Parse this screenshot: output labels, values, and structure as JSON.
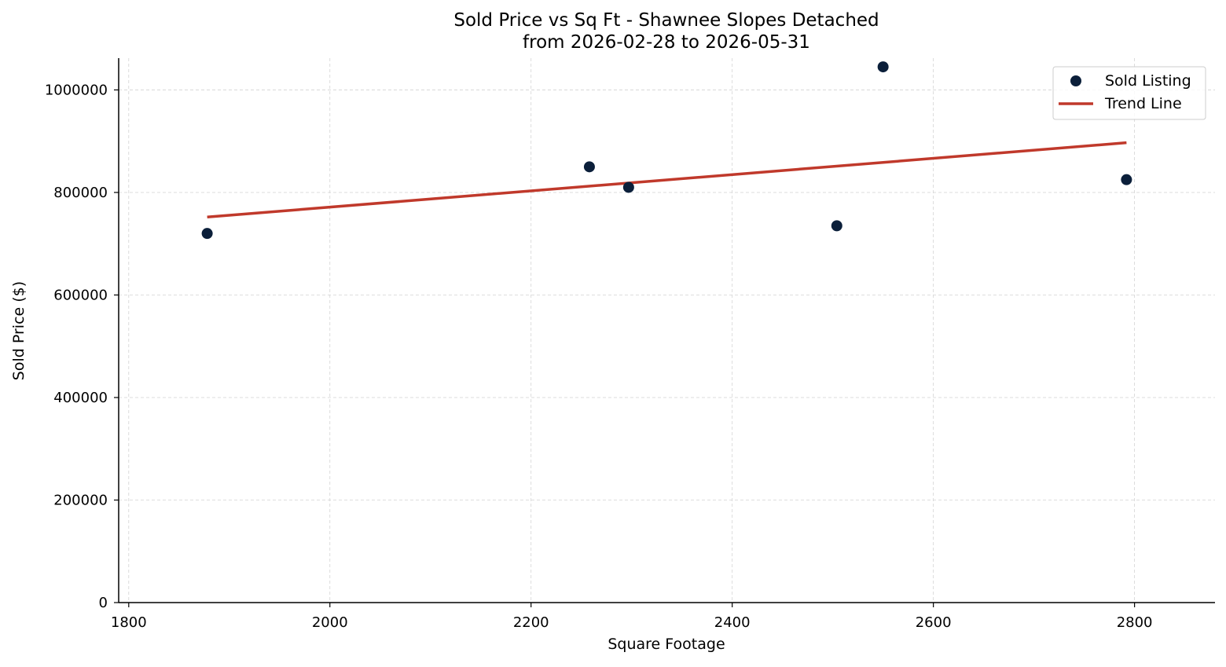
{
  "chart_data": {
    "type": "scatter",
    "title": "Sold Price vs Sq Ft - Shawnee Slopes Detached",
    "subtitle": "from 2026-02-28 to 2026-05-31",
    "xlabel": "Square Footage",
    "ylabel": "Sold Price ($)",
    "xlim": [
      1790,
      2880
    ],
    "ylim": [
      0,
      1062000
    ],
    "x_ticks": [
      1800,
      2000,
      2200,
      2400,
      2600,
      2800
    ],
    "y_ticks": [
      0,
      200000,
      400000,
      600000,
      800000,
      1000000
    ],
    "grid": true,
    "legend_position": "top-right",
    "series": [
      {
        "name": "Sold Listing",
        "kind": "scatter",
        "color": "#0b1f3a",
        "points": [
          {
            "x": 1878,
            "y": 720000
          },
          {
            "x": 2258,
            "y": 850000
          },
          {
            "x": 2297,
            "y": 810000
          },
          {
            "x": 2504,
            "y": 735000
          },
          {
            "x": 2550,
            "y": 1045000
          },
          {
            "x": 2792,
            "y": 825000
          }
        ]
      },
      {
        "name": "Trend Line",
        "kind": "line",
        "color": "#c0392b",
        "points": [
          {
            "x": 1878,
            "y": 752000
          },
          {
            "x": 2792,
            "y": 897000
          }
        ]
      }
    ]
  }
}
